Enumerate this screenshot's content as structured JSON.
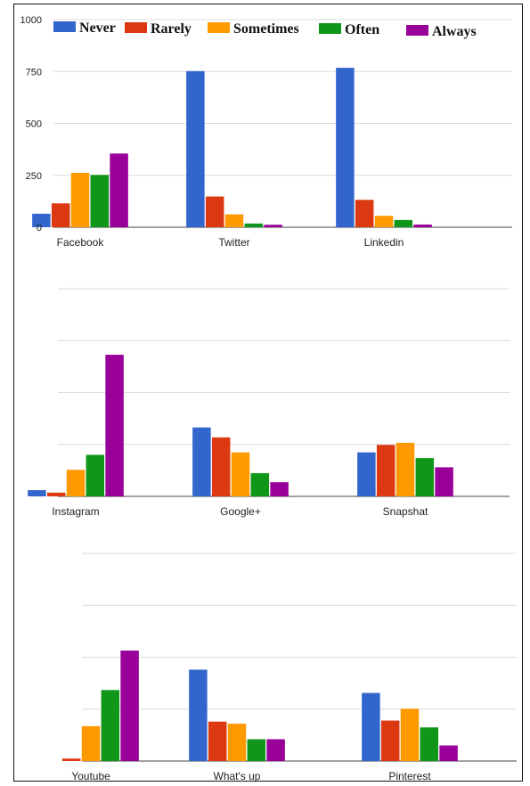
{
  "chart_data": {
    "type": "bar",
    "ylim": [
      0,
      1000
    ],
    "yticks": [
      "1000",
      "750",
      "500",
      "250",
      "0"
    ],
    "grid": true,
    "legend_placement": "top",
    "series": [
      {
        "name": "Never",
        "color": "#3366cc"
      },
      {
        "name": "Rarely",
        "color": "#dc3912"
      },
      {
        "name": "Sometimes",
        "color": "#ff9900"
      },
      {
        "name": "Often",
        "color": "#109618"
      },
      {
        "name": "Always",
        "color": "#990099"
      }
    ],
    "panels": [
      {
        "categories": [
          "Facebook",
          "Twitter",
          "Linkedin"
        ],
        "values": [
          [
            65,
            115,
            262,
            252,
            355
          ],
          [
            752,
            148,
            62,
            18,
            12
          ],
          [
            768,
            132,
            55,
            35,
            13
          ]
        ]
      },
      {
        "categories": [
          "Instagram",
          "Google+",
          "Snapshat"
        ],
        "values": [
          [
            30,
            18,
            128,
            200,
            682
          ],
          [
            332,
            284,
            212,
            112,
            68
          ],
          [
            212,
            248,
            258,
            184,
            140
          ]
        ]
      },
      {
        "categories": [
          "Youtube",
          "What's up",
          "Pinterest"
        ],
        "values": [
          [
            0,
            12,
            168,
            342,
            532
          ],
          [
            440,
            190,
            180,
            105,
            105
          ],
          [
            328,
            195,
            252,
            162,
            75
          ]
        ]
      }
    ]
  }
}
